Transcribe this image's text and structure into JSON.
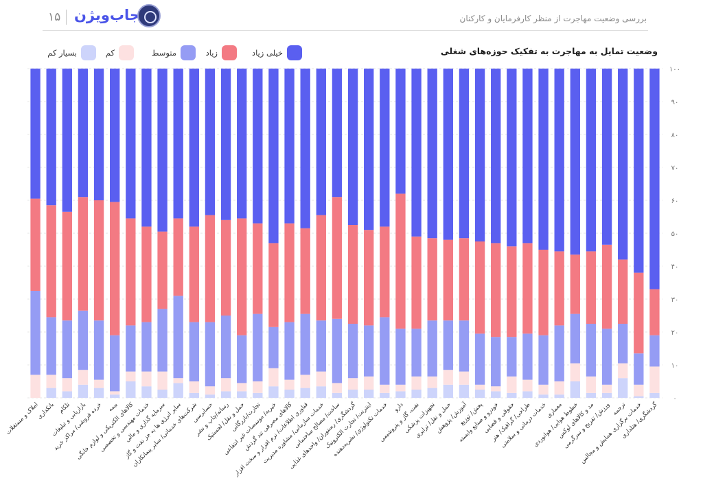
{
  "header": {
    "page_number": "۱۵",
    "brand": "جاب‌ویژن",
    "report_title": "بررسی وضعیت مهاجرت از منظر کارفرمایان و کارکنان"
  },
  "colors": {
    "very_high": "#5a5ff0",
    "high": "#f37a83",
    "medium": "#959cf4",
    "low": "#fde1e1",
    "very_low": "#cdd4fb"
  },
  "chart_data": {
    "type": "bar",
    "stacked": true,
    "title": "وضعیت تمایل به مهاجرت به تفکیک حوزه‌های شغلی",
    "ylim": [
      0,
      100
    ],
    "yticks": [
      "۰",
      "۱۰",
      "۲۰",
      "۳۰",
      "۴۰",
      "۵۰",
      "۶۰",
      "۷۰",
      "۸۰",
      "۹۰",
      "۱۰۰"
    ],
    "grid": true,
    "legend_position": "top",
    "categories": [
      "املاک و مستغلات",
      "بانکداری",
      "تلکام",
      "بازاریابی و تبلیغات",
      "خرده فروشی/ مراکز خرید",
      "بیمه",
      "کالاهای الکتریکی و لوازم خانگی",
      "خدمات مهندسی و تخصصی",
      "سرمایه گذاری و مالی",
      "سایر انرژی ها به جز نفت و گاز",
      "شرکت‌های خدماتی/ سایر پیمانکاران",
      "حسابرسی",
      "رسانه/چاپ و نشر",
      "حمل و نقل/ لجستیک",
      "تجارت/بازرگانی",
      "خیریه/ موسسات غیر انتفاعی",
      "کالاهای مصرفی تند گردش",
      "فناوری اطلاعات/ نرم افزار و سخت افزار",
      "خدمات سازمانی/ مشاوره مدیریت",
      "ساخت/ مصالح ساختمانی",
      "گردشگری/ رستوران/ واحدهای غذایی",
      "اینترنت/ تجارت الکترونیک",
      "خدمات تکنولوژی/ نشریه‌دهنده",
      "دارو",
      "نفت، گاز و پتروشیمی",
      "تجهیزات پزشکی",
      "حمل و نقل/ ترابری",
      "آموزش/ پژوهش",
      "پخش/ توزیع",
      "خودرو و صنایع وابسته",
      "حقوقی و قضایی",
      "طراحی/ گرافیک/ هنر",
      "خدمات درمانی و سلامتی",
      "معماری",
      "خطوط هوایی/ هوانوردی",
      "مد و کالاهای لوکس",
      "ورزش/ تفریح و سرگرمی",
      "ترجمه",
      "خدمات برگزاری همایش و مجالس",
      "گردشگری/ هتلداری"
    ],
    "series": [
      {
        "name": "بسیار کم",
        "color_key": "very_low",
        "values": [
          0,
          3,
          2,
          4,
          3,
          1,
          5,
          3.5,
          2.5,
          4.5,
          1.5,
          1,
          2,
          2,
          1.5,
          3.5,
          2.5,
          3,
          3.5,
          1.5,
          2.5,
          2.5,
          1.5,
          2,
          2.5,
          3,
          4,
          4,
          2.5,
          2,
          1.5,
          2,
          1,
          1,
          5,
          1.5,
          1.5,
          6,
          0.5,
          1.5
        ]
      },
      {
        "name": "کم",
        "color_key": "low",
        "values": [
          7,
          4,
          4,
          4.5,
          2.5,
          1,
          3,
          4.5,
          5.5,
          1.5,
          3.5,
          2.5,
          4,
          2.5,
          3.5,
          5.5,
          3,
          4,
          4.5,
          3,
          3.5,
          4,
          2.5,
          2,
          4,
          3.5,
          4.5,
          4,
          1.5,
          1.5,
          5,
          3.5,
          3,
          4,
          5.5,
          5,
          2.5,
          4.5,
          3.5,
          8
        ]
      },
      {
        "name": "متوسط",
        "color_key": "medium",
        "values": [
          25.5,
          17.5,
          17.5,
          18,
          18,
          17,
          14,
          15,
          19,
          25,
          18,
          19.5,
          19,
          14.5,
          20.5,
          12.5,
          17.5,
          18.5,
          15.5,
          19.5,
          16.5,
          15.5,
          20.5,
          17,
          14.5,
          17,
          15,
          15.5,
          15.5,
          15,
          12,
          14,
          15,
          17,
          15,
          16,
          17,
          12,
          9.5,
          9.5
        ]
      },
      {
        "name": "زیاد",
        "color_key": "high",
        "values": [
          28,
          34,
          33,
          34.5,
          36.5,
          40.5,
          32.5,
          29,
          23.5,
          23.5,
          29,
          32.5,
          29,
          35.5,
          27.5,
          25.5,
          30,
          26,
          32,
          37,
          30,
          29,
          27.5,
          41,
          28,
          25,
          24.5,
          25,
          28,
          28.5,
          27.5,
          27.5,
          26,
          22.5,
          18,
          22,
          25.5,
          19.5,
          24.5,
          14
        ]
      },
      {
        "name": "خیلی زیاد",
        "color_key": "very_high",
        "values": [
          39.5,
          41.5,
          43.5,
          39,
          40,
          40.5,
          45.5,
          48,
          49.5,
          45.5,
          48,
          44.5,
          46,
          45.5,
          47,
          53,
          47,
          48.5,
          44.5,
          39,
          47.5,
          49,
          48,
          38,
          51,
          51.5,
          52,
          51.5,
          52.5,
          53,
          54,
          53,
          55,
          55.5,
          56.5,
          55.5,
          53.5,
          58,
          62,
          67
        ]
      }
    ]
  }
}
